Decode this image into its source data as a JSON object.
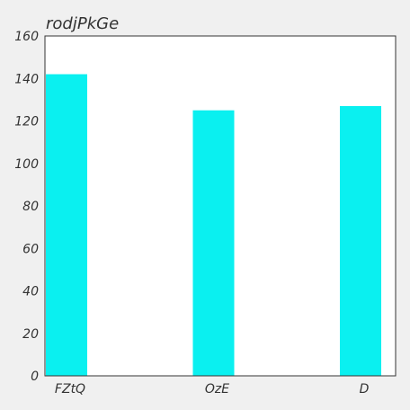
{
  "chart_data": {
    "type": "bar",
    "title": "rodjPkGe",
    "xlabel": "",
    "ylabel": "",
    "categories": [
      "FZtQ",
      "OzE",
      "D"
    ],
    "values": [
      142,
      125,
      127
    ],
    "ylim": [
      0,
      160
    ],
    "yticks": [
      0,
      20,
      40,
      60,
      80,
      100,
      120,
      140,
      160
    ],
    "grid": false,
    "legend": "none",
    "colors": {
      "bar": "#0af0f0",
      "plot_background": "#ffffff",
      "page_background": "#f0f0f0",
      "axis": "#333333"
    }
  }
}
